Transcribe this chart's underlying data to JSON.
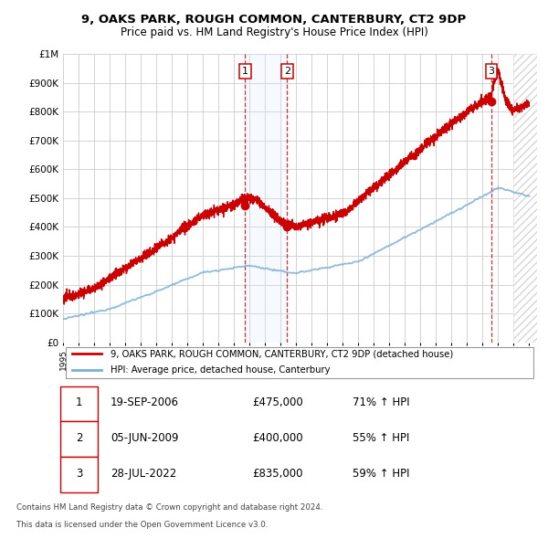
{
  "title1": "9, OAKS PARK, ROUGH COMMON, CANTERBURY, CT2 9DP",
  "title2": "Price paid vs. HM Land Registry's House Price Index (HPI)",
  "ylim": [
    0,
    1000000
  ],
  "yticks": [
    0,
    100000,
    200000,
    300000,
    400000,
    500000,
    600000,
    700000,
    800000,
    900000,
    1000000
  ],
  "ytick_labels": [
    "£0",
    "£100K",
    "£200K",
    "£300K",
    "£400K",
    "£500K",
    "£600K",
    "£700K",
    "£800K",
    "£900K",
    "£1M"
  ],
  "xlim_start": 1995.0,
  "xlim_end": 2025.5,
  "hpi_color": "#7bafd4",
  "price_color": "#cc0000",
  "transaction1_date": 2006.72,
  "transaction1_price": 475000,
  "transaction2_date": 2009.42,
  "transaction2_price": 400000,
  "transaction3_date": 2022.57,
  "transaction3_price": 835000,
  "legend_label1": "9, OAKS PARK, ROUGH COMMON, CANTERBURY, CT2 9DP (detached house)",
  "legend_label2": "HPI: Average price, detached house, Canterbury",
  "table_rows": [
    {
      "num": "1",
      "date": "19-SEP-2006",
      "price": "£475,000",
      "hpi": "71% ↑ HPI"
    },
    {
      "num": "2",
      "date": "05-JUN-2009",
      "price": "£400,000",
      "hpi": "55% ↑ HPI"
    },
    {
      "num": "3",
      "date": "28-JUL-2022",
      "price": "£835,000",
      "hpi": "59% ↑ HPI"
    }
  ],
  "footnote1": "Contains HM Land Registry data © Crown copyright and database right 2024.",
  "footnote2": "This data is licensed under the Open Government Licence v3.0.",
  "grid_color": "#cccccc",
  "band_color": "#ddeeff"
}
